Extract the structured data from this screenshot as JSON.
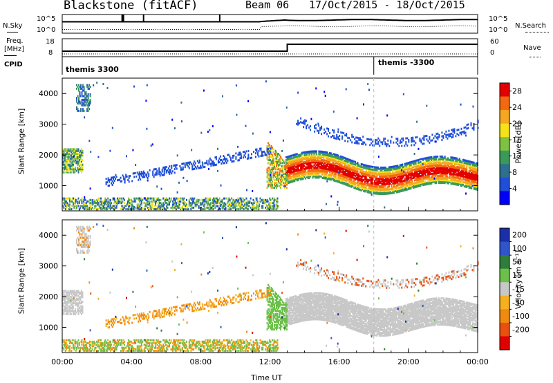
{
  "header": {
    "station": "Blackstone (fitACF)",
    "beam": "Beam 06",
    "date_range": "17/Oct/2015 - 18/Oct/2015"
  },
  "top_panels": {
    "nsky": {
      "left_label": "N.Sky",
      "right_label": "N.Search",
      "tick_top": "10^5",
      "tick_bottom": "10^0"
    },
    "freq": {
      "left_label_line1": "Freq.",
      "left_label_line2": "[MHz]",
      "ticks_left": [
        "18",
        "8"
      ],
      "ticks_right": [
        "60",
        "0"
      ],
      "right_label": "Nave"
    },
    "cpid": {
      "label": "CPID",
      "segments": [
        {
          "start_hour": 0,
          "text": "themis 3300"
        },
        {
          "start_hour": 18,
          "text": "themis -3300"
        }
      ]
    }
  },
  "chart_data": [
    {
      "type": "heatmap",
      "title": "",
      "xlabel": "",
      "ylabel": "Slant Range [km]",
      "xlim": [
        0,
        24
      ],
      "ylim": [
        180,
        4500
      ],
      "x_ticks": [
        "00:00",
        "04:00",
        "08:00",
        "12:00",
        "16:00",
        "20:00",
        "00:00"
      ],
      "y_ticks": [
        1000,
        2000,
        3000,
        4000
      ],
      "colorbar": {
        "label": "Power [dB]",
        "ticks": [
          4,
          8,
          12,
          16,
          20,
          24,
          28
        ],
        "range": [
          0,
          30
        ],
        "colors": [
          "#0000ff",
          "#1f4ed8",
          "#2e6f8e",
          "#3a9a5a",
          "#7fc241",
          "#f5e21a",
          "#f5a623",
          "#f26a10",
          "#e30000"
        ]
      }
    },
    {
      "type": "heatmap",
      "title": "",
      "xlabel": "Time UT",
      "ylabel": "Slant Range [km]",
      "xlim": [
        0,
        24
      ],
      "ylim": [
        180,
        4500
      ],
      "x_ticks": [
        "00:00",
        "04:00",
        "08:00",
        "12:00",
        "16:00",
        "20:00",
        "00:00"
      ],
      "y_ticks": [
        1000,
        2000,
        3000,
        4000
      ],
      "colorbar": {
        "label": "Velocity [m s⁻¹]",
        "ticks": [
          "200",
          "100",
          "50",
          "15",
          "-15",
          "-50",
          "-100",
          "-200"
        ],
        "colors": [
          "#1a2fa8",
          "#2f55c8",
          "#2e7d3a",
          "#6cc04a",
          "#c8c8c8",
          "#f5b020",
          "#f08a10",
          "#e85010",
          "#e00000"
        ]
      }
    }
  ]
}
